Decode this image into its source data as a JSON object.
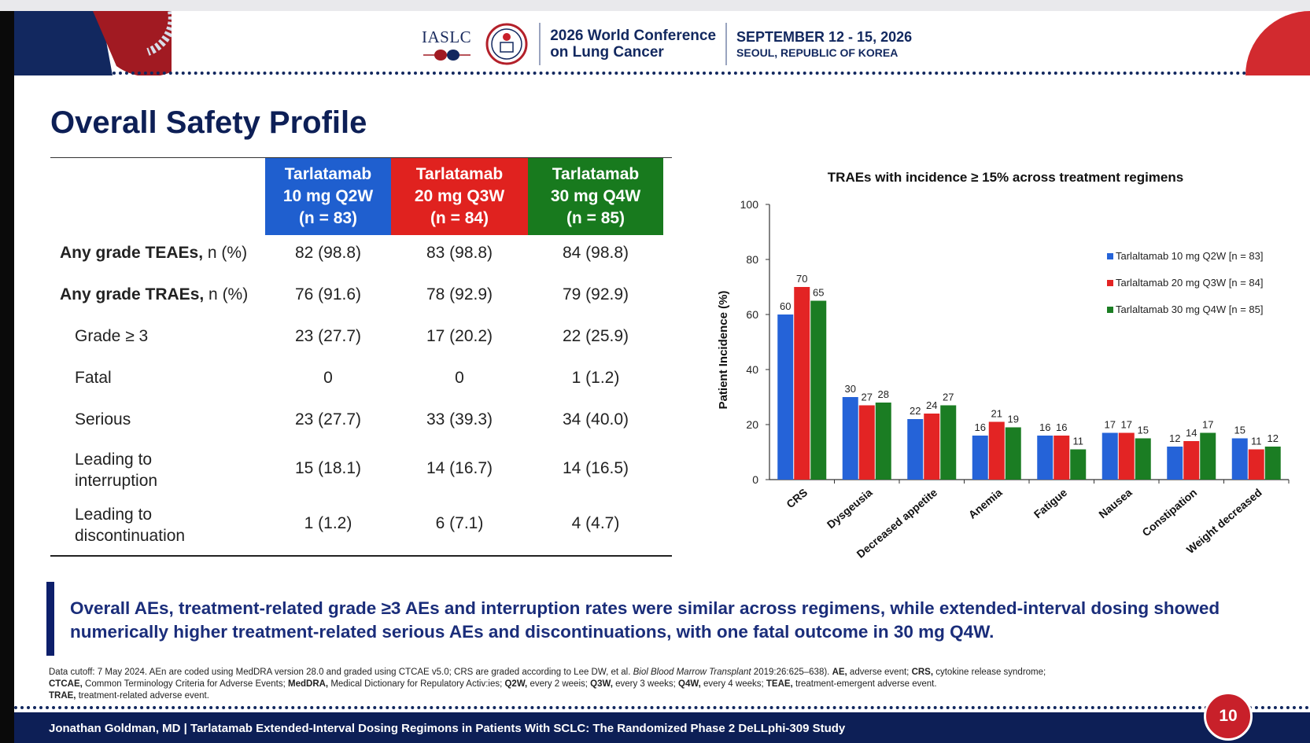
{
  "header": {
    "org_logo_text": "IASLC",
    "conference_line1": "2026 World Conference",
    "conference_line2": "on Lung Cancer",
    "dates": "SEPTEMBER 12 - 15, 2026",
    "location": "SEOUL, REPUBLIC OF KOREA"
  },
  "title": "Overall Safety Profile",
  "table": {
    "columns": [
      {
        "line1": "Tarlatamab",
        "line2": "10 mg Q2W",
        "line3": "(n = 83)",
        "color": "#1f5fcf"
      },
      {
        "line1": "Tarlatamab",
        "line2": "20 mg Q3W",
        "line3": "(n = 84)",
        "color": "#e0221f"
      },
      {
        "line1": "Tarlatamab",
        "line2": "30 mg Q4W",
        "line3": "(n = 85)",
        "color": "#187a1e"
      }
    ],
    "rows": [
      {
        "label_bold": "Any grade TEAEs,",
        "label_rest": " n (%)",
        "values": [
          "82 (98.8)",
          "83 (98.8)",
          "84 (98.8)"
        ]
      },
      {
        "label_bold": "Any grade TRAEs,",
        "label_rest": " n (%)",
        "values": [
          "76 (91.6)",
          "78 (92.9)",
          "79 (92.9)"
        ]
      },
      {
        "label": "Grade ≥ 3",
        "values": [
          "23 (27.7)",
          "17 (20.2)",
          "22 (25.9)"
        ]
      },
      {
        "label": "Fatal",
        "values": [
          "0",
          "0",
          "1 (1.2)"
        ]
      },
      {
        "label": "Serious",
        "values": [
          "23 (27.7)",
          "33 (39.3)",
          "34 (40.0)"
        ]
      },
      {
        "label_line1": "Leading to",
        "label_line2": "interruption",
        "values": [
          "15 (18.1)",
          "14 (16.7)",
          "14 (16.5)"
        ]
      },
      {
        "label_line1": "Leading to",
        "label_line2": "discontinuation",
        "values": [
          "1 (1.2)",
          "6 (7.1)",
          "4 (4.7)"
        ]
      }
    ]
  },
  "chart_data": {
    "type": "bar",
    "title": "TRAEs with incidence ≥ 15% across treatment regimens",
    "xlabel": "",
    "ylabel": "Patient Incidence (%)",
    "ylim": [
      0,
      100
    ],
    "yticks": [
      0,
      20,
      40,
      60,
      80,
      100
    ],
    "grid": false,
    "legend_position": "right",
    "categories": [
      "CRS",
      "Dysgeusia",
      "Decreased appetite",
      "Anemia",
      "Fatigue",
      "Nausea",
      "Constipation",
      "Weight decreased"
    ],
    "series": [
      {
        "name": "Tarlaltamab 10 mg Q2W [n = 83]",
        "color": "#2563d8",
        "values": [
          60,
          30,
          22,
          16,
          16,
          17,
          12,
          15
        ]
      },
      {
        "name": "Tarlaltamab 20 mg Q3W [n = 84]",
        "color": "#e32424",
        "values": [
          70,
          27,
          24,
          21,
          16,
          17,
          14,
          11
        ]
      },
      {
        "name": "Tarlaltamab 30 mg Q4W [n = 85]",
        "color": "#1b7d23",
        "values": [
          65,
          28,
          27,
          19,
          11,
          15,
          17,
          12
        ]
      }
    ]
  },
  "callout": "Overall AEs, treatment-related grade ≥3 AEs and interruption rates were similar across regimens, while extended-interval dosing showed numerically higher treatment-related serious AEs and discontinuations, with one fatal outcome in 30 mg Q4W.",
  "footnote": {
    "line1_a": "Data cutoff: 7 May 2024. AEn are coded using MedDRA version 28.0 and graded using CTCAE v5.0; CRS are graded according to Lee DW, et al. ",
    "line1_cite": "Biol Blood Marrow Transplant",
    "line1_b": " 2019:26:625–638). ",
    "abbrevs1": [
      {
        "term": "AE,",
        "def": " adverse event; "
      },
      {
        "term": "CRS,",
        "def": " cytokine release syndrome;"
      }
    ],
    "abbrevs2": [
      {
        "term": "CTCAE,",
        "def": " Common Terminology Criteria for Adverse Events; "
      },
      {
        "term": "MedDRA,",
        "def": " Medical Dictionary for Repulatory Activ:ies; "
      },
      {
        "term": "Q2W,",
        "def": " every 2 weeis; "
      },
      {
        "term": "Q3W,",
        "def": " every 3 weeks; "
      },
      {
        "term": "Q4W,",
        "def": " every 4 weeks; "
      },
      {
        "term": "TEAE,",
        "def": " treatment-emergent adverse event."
      }
    ],
    "abbrevs3": [
      {
        "term": "TRAE,",
        "def": " treatment-related adverse event."
      }
    ]
  },
  "bottom_bar": "Jonathan Goldman, MD | Tarlatamab Extended-Interval Dosing Regimons in Patients With SCLC: The Randomized Phase 2 DeLLphi-309 Study",
  "page_number": "10"
}
